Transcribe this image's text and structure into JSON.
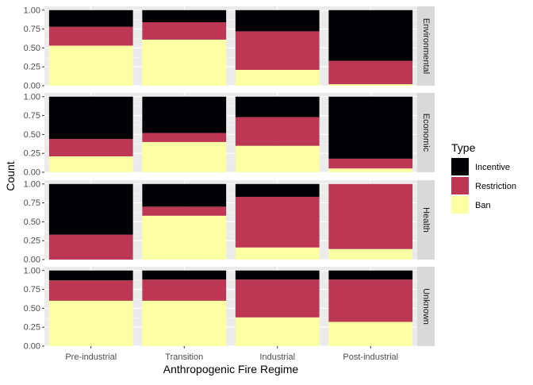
{
  "chart_data": {
    "type": "bar",
    "stacked": true,
    "faceted": true,
    "xlabel": "Anthropogenic Fire Regime",
    "ylabel": "Count",
    "ylim": [
      0,
      1.05
    ],
    "yticks": [
      "0.00",
      "0.25",
      "0.50",
      "0.75",
      "1.00"
    ],
    "categories": [
      "Pre-industrial",
      "Transition",
      "Industrial",
      "Post-industrial"
    ],
    "legend": {
      "title": "Type",
      "position": "right",
      "entries": [
        {
          "label": "Incentive",
          "color": "#000004"
        },
        {
          "label": "Restriction",
          "color": "#bb3754"
        },
        {
          "label": "Ban",
          "color": "#fcffa4"
        }
      ]
    },
    "facets": [
      {
        "label": "Environmental",
        "series": [
          {
            "name": "Ban",
            "values": [
              0.53,
              0.61,
              0.21,
              0.02
            ]
          },
          {
            "name": "Restriction",
            "values": [
              0.25,
              0.23,
              0.51,
              0.31
            ]
          },
          {
            "name": "Incentive",
            "values": [
              0.22,
              0.16,
              0.28,
              0.67
            ]
          }
        ]
      },
      {
        "label": "Economic",
        "series": [
          {
            "name": "Ban",
            "values": [
              0.21,
              0.4,
              0.35,
              0.05
            ]
          },
          {
            "name": "Restriction",
            "values": [
              0.23,
              0.12,
              0.38,
              0.13
            ]
          },
          {
            "name": "Incentive",
            "values": [
              0.56,
              0.48,
              0.27,
              0.82
            ]
          }
        ]
      },
      {
        "label": "Health",
        "series": [
          {
            "name": "Ban",
            "values": [
              0.0,
              0.58,
              0.16,
              0.14
            ]
          },
          {
            "name": "Restriction",
            "values": [
              0.33,
              0.12,
              0.67,
              0.86
            ]
          },
          {
            "name": "Incentive",
            "values": [
              0.67,
              0.3,
              0.17,
              0.0
            ]
          }
        ]
      },
      {
        "label": "Unknown",
        "series": [
          {
            "name": "Ban",
            "values": [
              0.6,
              0.6,
              0.38,
              0.32
            ]
          },
          {
            "name": "Restriction",
            "values": [
              0.27,
              0.28,
              0.5,
              0.56
            ]
          },
          {
            "name": "Incentive",
            "values": [
              0.13,
              0.12,
              0.12,
              0.12
            ]
          }
        ]
      }
    ]
  }
}
